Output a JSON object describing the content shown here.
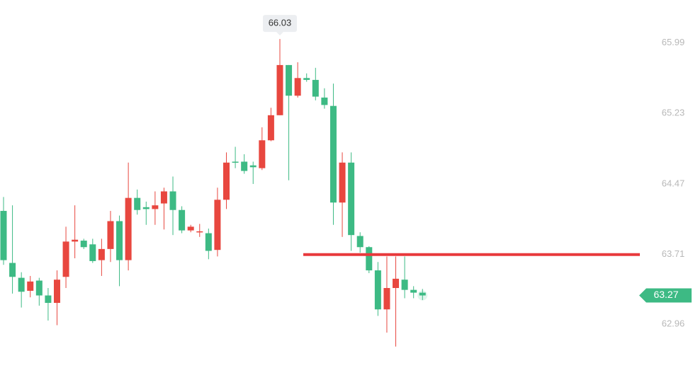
{
  "chart_data": {
    "type": "candlestick",
    "up_color": "#e8473f",
    "down_color": "#3dba84",
    "open": [
      64.18,
      63.62,
      63.46,
      63.32,
      63.43,
      63.27,
      63.19,
      63.47,
      63.85,
      63.86,
      63.82,
      63.65,
      63.77,
      64.07,
      63.65,
      64.32,
      64.22,
      64.2,
      64.26,
      64.39,
      64.19,
      63.97,
      63.95,
      63.94,
      63.76,
      64.3,
      64.71,
      64.71,
      64.67,
      64.64,
      64.94,
      65.21,
      65.75,
      65.42,
      65.61,
      65.59,
      65.4,
      65.31,
      64.27,
      64.7,
      63.91,
      63.79,
      63.54,
      63.12,
      63.35,
      63.44,
      63.33,
      63.3
    ],
    "high": [
      64.33,
      64.24,
      63.52,
      63.48,
      63.46,
      63.35,
      63.54,
      64.01,
      64.24,
      63.88,
      63.88,
      63.88,
      64.18,
      64.13,
      64.7,
      64.41,
      64.28,
      64.39,
      64.43,
      64.55,
      64.23,
      64.03,
      64.04,
      63.99,
      64.43,
      64.81,
      64.87,
      64.79,
      64.71,
      65.08,
      65.29,
      66.03,
      65.75,
      65.78,
      65.66,
      65.72,
      65.5,
      65.55,
      64.81,
      64.81,
      63.95,
      63.8,
      63.63,
      63.69,
      63.69,
      63.69,
      63.37,
      63.34
    ],
    "low": [
      63.6,
      63.29,
      63.14,
      63.25,
      63.16,
      63.0,
      62.95,
      63.35,
      63.67,
      63.77,
      63.62,
      63.48,
      63.63,
      63.37,
      63.54,
      64.14,
      64.03,
      64.03,
      63.98,
      63.92,
      63.94,
      63.95,
      63.9,
      63.66,
      63.69,
      64.2,
      64.64,
      64.58,
      64.47,
      64.62,
      64.93,
      65.21,
      64.51,
      65.4,
      65.57,
      65.37,
      65.28,
      64.03,
      63.9,
      63.75,
      63.73,
      63.51,
      63.05,
      62.87,
      62.72,
      63.24,
      63.24,
      63.22
    ],
    "close": [
      63.65,
      63.47,
      63.31,
      63.42,
      63.27,
      63.19,
      63.44,
      63.85,
      63.87,
      63.79,
      63.64,
      63.77,
      64.07,
      63.65,
      64.32,
      64.19,
      64.2,
      64.24,
      64.39,
      64.19,
      63.97,
      64.01,
      63.96,
      63.75,
      64.3,
      64.7,
      64.7,
      64.61,
      64.65,
      64.94,
      65.21,
      65.75,
      65.42,
      65.61,
      65.59,
      65.41,
      65.32,
      64.27,
      64.7,
      63.92,
      63.79,
      63.54,
      63.12,
      63.35,
      63.45,
      63.33,
      63.3,
      63.27
    ],
    "ylim": [
      62.36,
      66.45
    ],
    "yticks": [
      65.99,
      65.23,
      64.47,
      63.71,
      62.96
    ],
    "hline": 63.71,
    "hline_color": "#e8393c"
  }
}
